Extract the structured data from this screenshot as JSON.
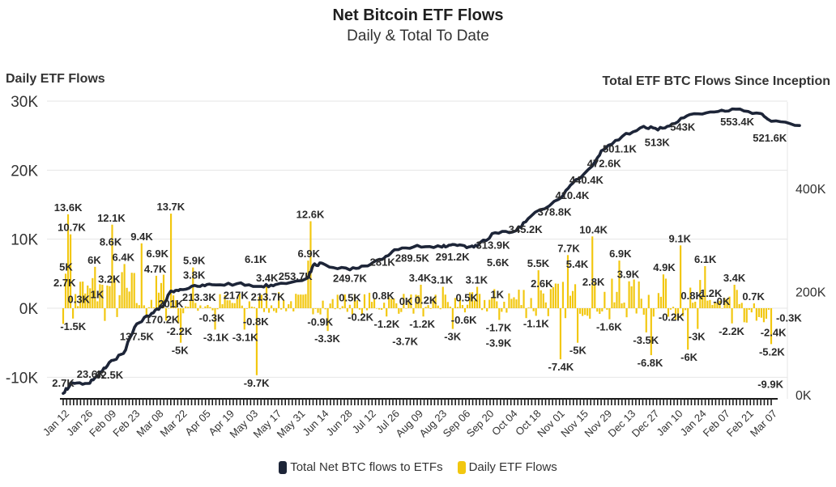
{
  "title": "Net Bitcoin ETF Flows",
  "subtitle": "Daily & Total To Date",
  "colors": {
    "bar": "#f2c70f",
    "line": "#1d2538",
    "grid": "#e6e6e6",
    "text": "#2a2a2a",
    "axis": "#1a1a1a"
  },
  "legend": {
    "line_label": "Total Net BTC flows to ETFs",
    "bar_label": "Daily ETF Flows"
  },
  "chart_data": {
    "type": "bar+line",
    "left_axis": {
      "title": "Daily ETF Flows",
      "ticks": [
        "30K",
        "20K",
        "10K",
        "0K",
        "-10K"
      ],
      "tick_values": [
        30000,
        20000,
        10000,
        0,
        -10000
      ],
      "ylim": [
        -13000,
        30000
      ]
    },
    "right_axis": {
      "title": "Total ETF BTC Flows Since Inception",
      "ticks": [
        "400K",
        "200K",
        "0K"
      ],
      "tick_values": [
        400000,
        200000,
        0
      ],
      "ylim": [
        0,
        586000
      ]
    },
    "x_ticks": [
      "Jan 12",
      "Jan 26",
      "Feb 09",
      "Feb 23",
      "Mar 08",
      "Mar 22",
      "Apr 05",
      "Apr 19",
      "May 03",
      "May 17",
      "May 31",
      "Jun 14",
      "Jun 28",
      "Jul 12",
      "Jul 26",
      "Aug 09",
      "Aug 23",
      "Sep 06",
      "Sep 20",
      "Oct 04",
      "Oct 18",
      "Nov 01",
      "Nov 15",
      "Nov 29",
      "Dec 13",
      "Dec 27",
      "Jan 10",
      "Jan 24",
      "Feb 07",
      "Feb 21",
      "Mar 07"
    ],
    "daily_labels": [
      {
        "text": "13.6K",
        "value": 13600,
        "pos": 0.007
      },
      {
        "text": "10.7K",
        "value": 10700,
        "pos": 0.012
      },
      {
        "text": "5K",
        "value": 5000,
        "pos": 0.004
      },
      {
        "text": "2.7K",
        "value": 2700,
        "pos": 0.002
      },
      {
        "text": "0.3K",
        "value": 300,
        "pos": 0.022
      },
      {
        "text": "-1.5K",
        "value": -1500,
        "pos": 0.014
      },
      {
        "text": "12.1K",
        "value": 12100,
        "pos": 0.068
      },
      {
        "text": "8.6K",
        "value": 8600,
        "pos": 0.067
      },
      {
        "text": "6K",
        "value": 6000,
        "pos": 0.044
      },
      {
        "text": "6.4K",
        "value": 6400,
        "pos": 0.085
      },
      {
        "text": "3.2K",
        "value": 3200,
        "pos": 0.065
      },
      {
        "text": "1K",
        "value": 1000,
        "pos": 0.048
      },
      {
        "text": "9.4K",
        "value": 9400,
        "pos": 0.111
      },
      {
        "text": "13.7K",
        "value": 13700,
        "pos": 0.152
      },
      {
        "text": "6.9K",
        "value": 6900,
        "pos": 0.133
      },
      {
        "text": "4.7K",
        "value": 4700,
        "pos": 0.13
      },
      {
        "text": "5.9K",
        "value": 5900,
        "pos": 0.185
      },
      {
        "text": "3.8K",
        "value": 3800,
        "pos": 0.185
      },
      {
        "text": "-2.2K",
        "value": -2200,
        "pos": 0.164
      },
      {
        "text": "-5K",
        "value": -5000,
        "pos": 0.165
      },
      {
        "text": "-0.3K",
        "value": -300,
        "pos": 0.21
      },
      {
        "text": "-3.1K",
        "value": -3100,
        "pos": 0.216
      },
      {
        "text": "-3.1K",
        "value": -3100,
        "pos": 0.257
      },
      {
        "text": "6.1K",
        "value": 6100,
        "pos": 0.272
      },
      {
        "text": "3.4K",
        "value": 3400,
        "pos": 0.288
      },
      {
        "text": "-0.8K",
        "value": -800,
        "pos": 0.272
      },
      {
        "text": "-9.7K",
        "value": -9700,
        "pos": 0.273
      },
      {
        "text": "12.6K",
        "value": 12600,
        "pos": 0.349
      },
      {
        "text": "6.9K",
        "value": 6900,
        "pos": 0.347
      },
      {
        "text": "-0.9K",
        "value": -900,
        "pos": 0.363
      },
      {
        "text": "-3.3K",
        "value": -3300,
        "pos": 0.373
      },
      {
        "text": "0.5K",
        "value": 500,
        "pos": 0.405
      },
      {
        "text": "-0.2K",
        "value": -200,
        "pos": 0.42
      },
      {
        "text": "0.8K",
        "value": 800,
        "pos": 0.452
      },
      {
        "text": "-1.2K",
        "value": -1200,
        "pos": 0.457
      },
      {
        "text": "0K",
        "value": 0,
        "pos": 0.484
      },
      {
        "text": "-3.7K",
        "value": -3700,
        "pos": 0.483
      },
      {
        "text": "3.4K",
        "value": 3400,
        "pos": 0.504
      },
      {
        "text": "0.2K",
        "value": 200,
        "pos": 0.512
      },
      {
        "text": "-1.2K",
        "value": -1200,
        "pos": 0.507
      },
      {
        "text": "3.1K",
        "value": 3100,
        "pos": 0.535
      },
      {
        "text": "-0.6K",
        "value": -600,
        "pos": 0.566
      },
      {
        "text": "-3K",
        "value": -3000,
        "pos": 0.55
      },
      {
        "text": "0.5K",
        "value": 500,
        "pos": 0.57
      },
      {
        "text": "3.1K",
        "value": 3100,
        "pos": 0.584
      },
      {
        "text": "5.6K",
        "value": 5600,
        "pos": 0.614
      },
      {
        "text": "1K",
        "value": 1000,
        "pos": 0.613
      },
      {
        "text": "-1.7K",
        "value": -1700,
        "pos": 0.615
      },
      {
        "text": "-3.9K",
        "value": -3900,
        "pos": 0.615
      },
      {
        "text": "5.5K",
        "value": 5500,
        "pos": 0.671
      },
      {
        "text": "2.6K",
        "value": 2600,
        "pos": 0.676
      },
      {
        "text": "-1.1K",
        "value": -1100,
        "pos": 0.668
      },
      {
        "text": "7.7K",
        "value": 7700,
        "pos": 0.714
      },
      {
        "text": "-7.4K",
        "value": -7400,
        "pos": 0.703
      },
      {
        "text": "10.4K",
        "value": 10400,
        "pos": 0.749
      },
      {
        "text": "5.4K",
        "value": 5400,
        "pos": 0.726
      },
      {
        "text": "2.8K",
        "value": 2800,
        "pos": 0.749
      },
      {
        "text": "-5K",
        "value": -5000,
        "pos": 0.727
      },
      {
        "text": "6.9K",
        "value": 6900,
        "pos": 0.787
      },
      {
        "text": "3.9K",
        "value": 3900,
        "pos": 0.798
      },
      {
        "text": "-1.6K",
        "value": -1600,
        "pos": 0.771
      },
      {
        "text": "4.9K",
        "value": 4900,
        "pos": 0.849
      },
      {
        "text": "-3.5K",
        "value": -3500,
        "pos": 0.823
      },
      {
        "text": "-6.8K",
        "value": -6800,
        "pos": 0.829
      },
      {
        "text": "9.1K",
        "value": 9100,
        "pos": 0.871
      },
      {
        "text": "-0.2K",
        "value": -200,
        "pos": 0.859
      },
      {
        "text": "0.8K",
        "value": 800,
        "pos": 0.888
      },
      {
        "text": "-3K",
        "value": -3000,
        "pos": 0.895
      },
      {
        "text": "-6K",
        "value": -6000,
        "pos": 0.884
      },
      {
        "text": "6.1K",
        "value": 6100,
        "pos": 0.907
      },
      {
        "text": "1.2K",
        "value": 1200,
        "pos": 0.915
      },
      {
        "text": "-0K",
        "value": 0,
        "pos": 0.93
      },
      {
        "text": "3.4K",
        "value": 3400,
        "pos": 0.948
      },
      {
        "text": "-2.2K",
        "value": -2200,
        "pos": 0.944
      },
      {
        "text": "0.7K",
        "value": 700,
        "pos": 0.975
      },
      {
        "text": "-2.4K",
        "value": -2400,
        "pos": 1.003
      },
      {
        "text": "-5.2K",
        "value": -5200,
        "pos": 1.001
      },
      {
        "text": "-0.3K",
        "value": -300,
        "pos": 1.025
      },
      {
        "text": "-9.9K",
        "value": -9900,
        "pos": 0.999
      }
    ],
    "total_series": [
      {
        "pos": 0.0,
        "value": 2700
      },
      {
        "pos": 0.012,
        "value": 23600
      },
      {
        "pos": 0.035,
        "value": 22000
      },
      {
        "pos": 0.05,
        "value": 38000
      },
      {
        "pos": 0.065,
        "value": 62500
      },
      {
        "pos": 0.085,
        "value": 80000
      },
      {
        "pos": 0.104,
        "value": 137500
      },
      {
        "pos": 0.125,
        "value": 158000
      },
      {
        "pos": 0.14,
        "value": 170200
      },
      {
        "pos": 0.152,
        "value": 201000
      },
      {
        "pos": 0.165,
        "value": 204000
      },
      {
        "pos": 0.19,
        "value": 210000
      },
      {
        "pos": 0.21,
        "value": 213300
      },
      {
        "pos": 0.245,
        "value": 215000
      },
      {
        "pos": 0.28,
        "value": 210000
      },
      {
        "pos": 0.3,
        "value": 213700
      },
      {
        "pos": 0.345,
        "value": 226000
      },
      {
        "pos": 0.355,
        "value": 253700
      },
      {
        "pos": 0.37,
        "value": 252000
      },
      {
        "pos": 0.405,
        "value": 242000
      },
      {
        "pos": 0.43,
        "value": 249700
      },
      {
        "pos": 0.45,
        "value": 262000
      },
      {
        "pos": 0.468,
        "value": 281000
      },
      {
        "pos": 0.5,
        "value": 289500
      },
      {
        "pos": 0.535,
        "value": 286000
      },
      {
        "pos": 0.55,
        "value": 291200
      },
      {
        "pos": 0.57,
        "value": 285000
      },
      {
        "pos": 0.585,
        "value": 288000
      },
      {
        "pos": 0.61,
        "value": 313900
      },
      {
        "pos": 0.64,
        "value": 318000
      },
      {
        "pos": 0.66,
        "value": 345200
      },
      {
        "pos": 0.7,
        "value": 378800
      },
      {
        "pos": 0.72,
        "value": 410400
      },
      {
        "pos": 0.745,
        "value": 440400
      },
      {
        "pos": 0.76,
        "value": 472600
      },
      {
        "pos": 0.79,
        "value": 501100
      },
      {
        "pos": 0.82,
        "value": 520000
      },
      {
        "pos": 0.84,
        "value": 513000
      },
      {
        "pos": 0.86,
        "value": 525000
      },
      {
        "pos": 0.885,
        "value": 543000
      },
      {
        "pos": 0.92,
        "value": 548000
      },
      {
        "pos": 0.95,
        "value": 553400
      },
      {
        "pos": 0.985,
        "value": 545000
      },
      {
        "pos": 1.0,
        "value": 530000
      },
      {
        "pos": 1.04,
        "value": 521600
      }
    ],
    "total_labels": [
      {
        "text": "2.7K",
        "value": 2700,
        "pos": 0.0
      },
      {
        "text": "23.6K",
        "value": 23600,
        "pos": 0.039
      },
      {
        "text": "62.5K",
        "value": 62500,
        "pos": 0.065
      },
      {
        "text": "137.5K",
        "value": 137500,
        "pos": 0.104
      },
      {
        "text": "170.2K",
        "value": 170200,
        "pos": 0.14
      },
      {
        "text": "201K",
        "value": 201000,
        "pos": 0.152
      },
      {
        "text": "213.3K",
        "value": 213300,
        "pos": 0.192
      },
      {
        "text": "217K",
        "value": 217000,
        "pos": 0.244
      },
      {
        "text": "213.7K",
        "value": 213700,
        "pos": 0.289
      },
      {
        "text": "253.7K",
        "value": 253700,
        "pos": 0.328
      },
      {
        "text": "249.7K",
        "value": 249700,
        "pos": 0.405
      },
      {
        "text": "281K",
        "value": 281000,
        "pos": 0.451
      },
      {
        "text": "289.5K",
        "value": 289500,
        "pos": 0.493
      },
      {
        "text": "291.2K",
        "value": 291200,
        "pos": 0.55
      },
      {
        "text": "313.9K",
        "value": 313900,
        "pos": 0.607
      },
      {
        "text": "345.2K",
        "value": 345200,
        "pos": 0.653
      },
      {
        "text": "378.8K",
        "value": 378800,
        "pos": 0.694
      },
      {
        "text": "410.4K",
        "value": 410400,
        "pos": 0.719
      },
      {
        "text": "440.4K",
        "value": 440400,
        "pos": 0.739
      },
      {
        "text": "472.6K",
        "value": 472600,
        "pos": 0.764
      },
      {
        "text": "501.1K",
        "value": 501100,
        "pos": 0.786
      },
      {
        "text": "513K",
        "value": 513000,
        "pos": 0.839
      },
      {
        "text": "543K",
        "value": 543000,
        "pos": 0.875
      },
      {
        "text": "553.4K",
        "value": 553400,
        "pos": 0.952
      },
      {
        "text": "521.6K",
        "value": 521600,
        "pos": 0.998
      }
    ]
  }
}
